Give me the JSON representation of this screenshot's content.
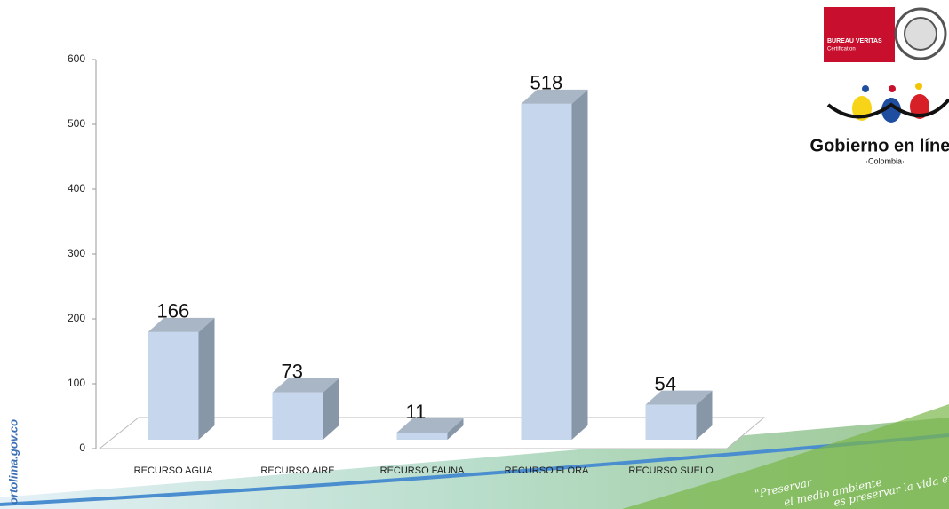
{
  "chart_data": {
    "type": "bar",
    "categories": [
      "RECURSO AGUA",
      "RECURSO AIRE",
      "RECURSO FAUNA",
      "RECURSO FLORA",
      "RECURSO SUELO"
    ],
    "values": [
      166,
      73,
      11,
      518,
      54
    ],
    "color": "#c6d6ec",
    "ylim": [
      0,
      600
    ],
    "yticks": [
      0,
      100,
      200,
      300,
      400,
      500,
      600
    ]
  },
  "decor": {
    "certifier": "BUREAU VERITAS",
    "certification": "Certification",
    "gov_title": "Gobierno en línea",
    "gov_country": "·Colombia·",
    "website": "ortolima.gov.co",
    "slogan": [
      "\"Preservar",
      "el medio ambiente",
      "es preservar la vida entera\""
    ]
  }
}
